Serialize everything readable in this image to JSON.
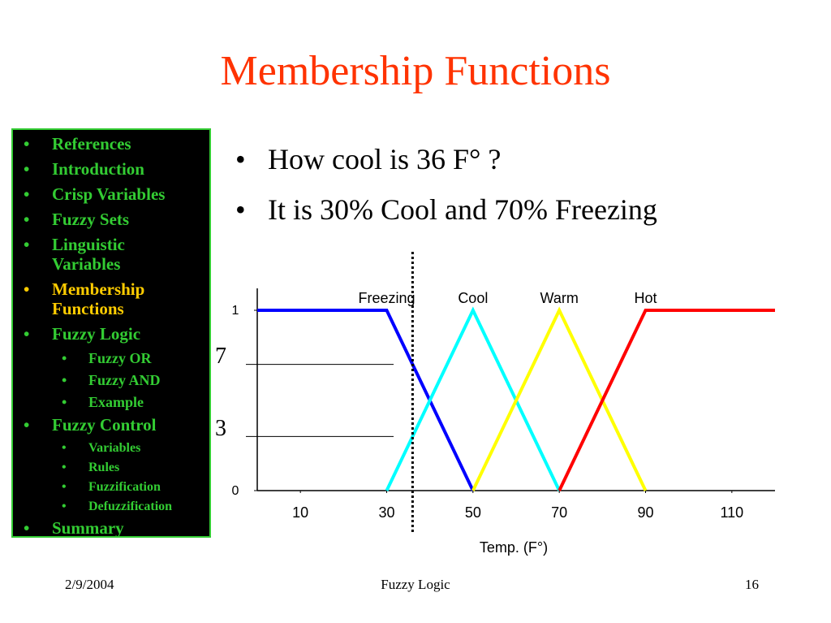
{
  "title": "Membership Functions",
  "nav": [
    {
      "text": "References",
      "level": 1
    },
    {
      "text": "Introduction",
      "level": 1
    },
    {
      "text": "Crisp Variables",
      "level": 1
    },
    {
      "text": "Fuzzy Sets",
      "level": 1
    },
    {
      "text": "Linguistic Variables",
      "level": 1
    },
    {
      "text": "Membership Functions",
      "level": 1,
      "current": true
    },
    {
      "text": "Fuzzy Logic",
      "level": 1
    },
    {
      "text": "Fuzzy OR",
      "level": 2
    },
    {
      "text": "Fuzzy AND",
      "level": 2
    },
    {
      "text": "Example",
      "level": 2
    },
    {
      "text": "Fuzzy Control",
      "level": 1
    },
    {
      "text": "Variables",
      "level": 3
    },
    {
      "text": "Rules",
      "level": 3
    },
    {
      "text": "Fuzzification",
      "level": 3
    },
    {
      "text": "Defuzzification",
      "level": 3
    },
    {
      "text": "Summary",
      "level": 1
    }
  ],
  "bullets": [
    "How cool is 36 F° ?",
    "It is 30% Cool and 70% Freezing"
  ],
  "chart_data": {
    "type": "line",
    "x_label": "Temp. (F°)",
    "xlim": [
      0,
      120
    ],
    "xticks": [
      10,
      30,
      50,
      70,
      90,
      110
    ],
    "ylim": [
      0,
      1
    ],
    "yticks": [
      0,
      {
        "value": 0.3,
        "label": "3"
      },
      {
        "value": 0.7,
        "label": "7"
      },
      1
    ],
    "vline": 36,
    "series": [
      {
        "name": "Freezing",
        "color": "#0000ff",
        "x": [
          0,
          30,
          50
        ],
        "values": [
          1,
          1,
          0
        ]
      },
      {
        "name": "Cool",
        "color": "#00ffff",
        "x": [
          30,
          50,
          70
        ],
        "values": [
          0,
          1,
          0
        ]
      },
      {
        "name": "Warm",
        "color": "#ffff00",
        "x": [
          50,
          70,
          90
        ],
        "values": [
          0,
          1,
          0
        ]
      },
      {
        "name": "Hot",
        "color": "#ff0000",
        "x": [
          70,
          90,
          120
        ],
        "values": [
          0,
          1,
          1
        ]
      }
    ]
  },
  "footer": {
    "date": "2/9/2004",
    "center": "Fuzzy Logic",
    "page": "16"
  }
}
